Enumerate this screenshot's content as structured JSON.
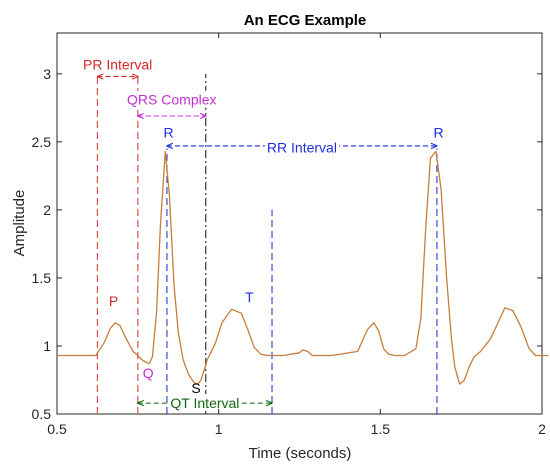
{
  "chart_data": {
    "type": "line",
    "title": "An ECG Example",
    "xlabel": "Time (seconds)",
    "ylabel": "Amplitude",
    "xlim": [
      0.5,
      2.0
    ],
    "ylim": [
      0.5,
      3.3
    ],
    "xticks": [
      0.5,
      1,
      1.5,
      2
    ],
    "xtick_labels": [
      "0.5",
      "1",
      "1.5",
      "2"
    ],
    "yticks": [
      0.5,
      1,
      1.5,
      2,
      2.5,
      3
    ],
    "ytick_labels": [
      "0.5",
      "1",
      "1.5",
      "2",
      "2.5",
      "3"
    ],
    "grid": false,
    "series": [
      {
        "color": "#c87d3c",
        "x": [
          0.5,
          0.62,
          0.645,
          0.665,
          0.68,
          0.695,
          0.715,
          0.735,
          0.75,
          0.762,
          0.775,
          0.785,
          0.795,
          0.808,
          0.82,
          0.835,
          0.848,
          0.862,
          0.875,
          0.89,
          0.905,
          0.915,
          0.925,
          0.935,
          0.945,
          0.955,
          0.965,
          0.975,
          0.99,
          1.01,
          1.04,
          1.07,
          1.09,
          1.11,
          1.13,
          1.15,
          1.165,
          1.2,
          1.25,
          1.26,
          1.275,
          1.29,
          1.35,
          1.43,
          1.46,
          1.48,
          1.495,
          1.51,
          1.525,
          1.545,
          1.575,
          1.61,
          1.625,
          1.64,
          1.655,
          1.672,
          1.688,
          1.705,
          1.72,
          1.73,
          1.745,
          1.76,
          1.775,
          1.79,
          1.81,
          1.84,
          1.86,
          1.885,
          1.91,
          1.935,
          1.96,
          1.98,
          2.02
        ],
        "y": [
          0.93,
          0.93,
          1.02,
          1.13,
          1.17,
          1.15,
          1.05,
          0.96,
          0.93,
          0.9,
          0.88,
          0.87,
          0.92,
          1.25,
          1.9,
          2.43,
          2.1,
          1.45,
          1.1,
          0.9,
          0.8,
          0.76,
          0.73,
          0.72,
          0.75,
          0.82,
          0.9,
          0.95,
          1.02,
          1.17,
          1.27,
          1.24,
          1.12,
          0.99,
          0.94,
          0.93,
          0.93,
          0.93,
          0.95,
          0.97,
          0.96,
          0.93,
          0.93,
          0.96,
          1.12,
          1.17,
          1.11,
          0.98,
          0.94,
          0.93,
          0.93,
          0.98,
          1.2,
          1.85,
          2.38,
          2.43,
          2.15,
          1.5,
          1.05,
          0.85,
          0.72,
          0.75,
          0.85,
          0.92,
          0.96,
          1.05,
          1.15,
          1.28,
          1.26,
          1.14,
          0.98,
          0.93,
          0.93
        ]
      }
    ],
    "vertical_lines": [
      {
        "x": 0.625,
        "y_range": [
          0.5,
          3.0
        ],
        "color": "#d9534f",
        "style": "dashed"
      },
      {
        "x": 0.75,
        "y_range": [
          0.5,
          3.0
        ],
        "color": "#d9534f",
        "style": "dashed"
      },
      {
        "x": 0.84,
        "y_range": [
          0.5,
          2.45
        ],
        "color": "#3b4bd8",
        "style": "dashed"
      },
      {
        "x": 0.96,
        "y_range": [
          0.5,
          3.0
        ],
        "color": "#333333",
        "style": "dashdot"
      },
      {
        "x": 1.165,
        "y_range": [
          0.5,
          2.0
        ],
        "color": "#3b4bd8",
        "style": "dashed"
      },
      {
        "x": 1.675,
        "y_range": [
          0.5,
          2.45
        ],
        "color": "#3b4bd8",
        "style": "dashed"
      }
    ],
    "intervals": [
      {
        "label": "PR Interval",
        "x": [
          0.625,
          0.75
        ],
        "y": 2.98,
        "label_y": 3.07,
        "color": "#d62728"
      },
      {
        "label": "QRS Complex",
        "x": [
          0.75,
          0.96
        ],
        "y": 2.69,
        "label_y": 2.81,
        "color": "#c32fd6"
      },
      {
        "label": "RR Interval",
        "x": [
          0.84,
          1.675
        ],
        "y": 2.47,
        "label_y": 2.46,
        "color": "#2030e0"
      },
      {
        "label": "QT Interval",
        "x": [
          0.75,
          1.165
        ],
        "y": 0.58,
        "label_y": 0.58,
        "color": "#116611"
      }
    ],
    "point_labels": [
      {
        "label": "P",
        "x": 0.675,
        "y": 1.33,
        "color": "#d62728"
      },
      {
        "label": "Q",
        "x": 0.782,
        "y": 0.8,
        "color": "#c32fd6"
      },
      {
        "label": "R",
        "x": 0.845,
        "y": 2.57,
        "color": "#2030e0"
      },
      {
        "label": "S",
        "x": 0.93,
        "y": 0.69,
        "color": "#000000"
      },
      {
        "label": "T",
        "x": 1.095,
        "y": 1.36,
        "color": "#2030e0"
      },
      {
        "label": "R",
        "x": 1.68,
        "y": 2.57,
        "color": "#2030e0"
      }
    ]
  }
}
